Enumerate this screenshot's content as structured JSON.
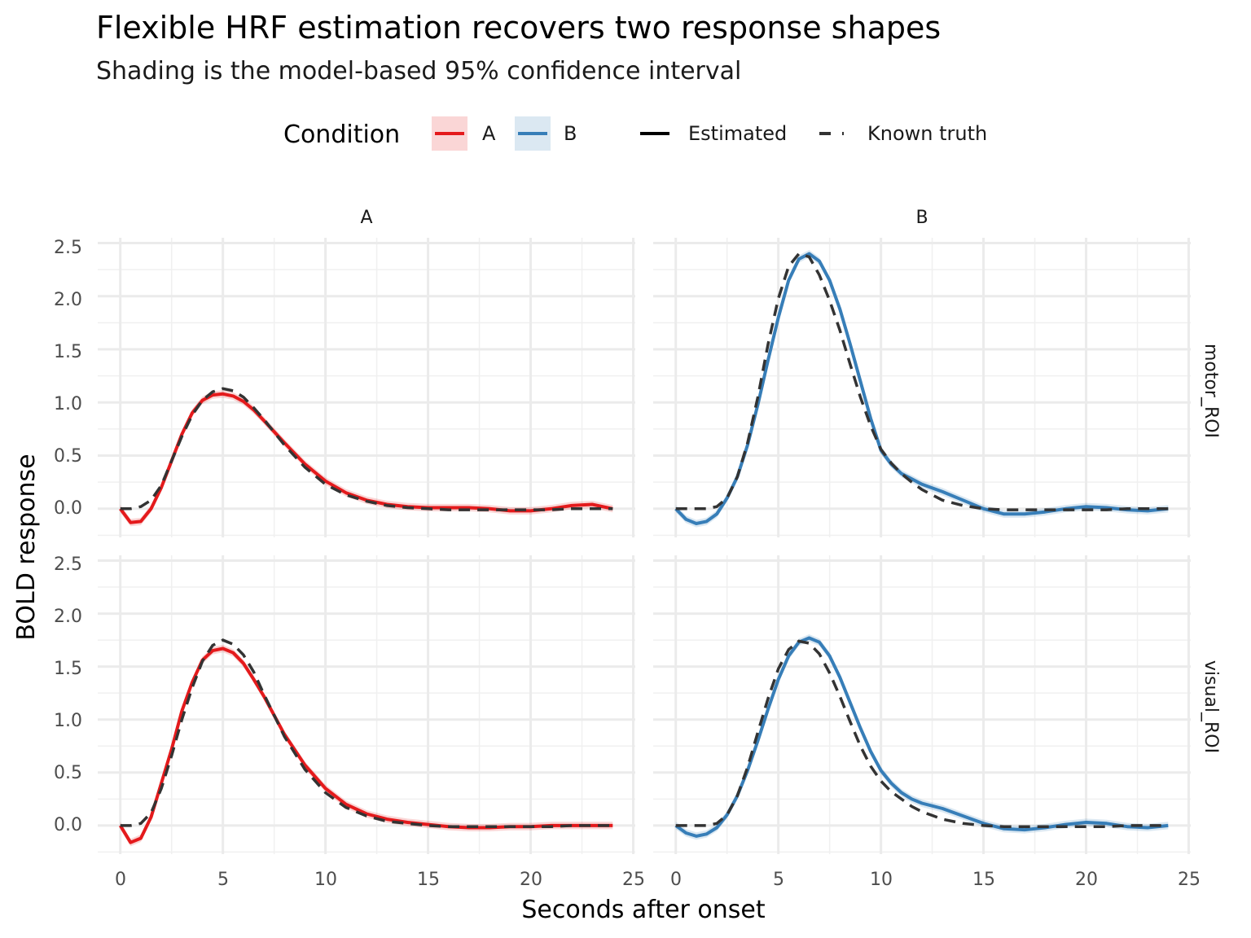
{
  "title": "Flexible HRF estimation recovers two response shapes",
  "subtitle": "Shading is the model-based 95% confidence interval",
  "legend": {
    "condition_title": "Condition",
    "condition_items": [
      {
        "label": "A",
        "color": "#e41a1c"
      },
      {
        "label": "B",
        "color": "#377eb8"
      }
    ],
    "linetype_items": [
      {
        "label": "Estimated"
      },
      {
        "label": "Known truth"
      }
    ]
  },
  "chart_data": {
    "type": "line",
    "xlabel": "Seconds after onset",
    "ylabel": "BOLD response",
    "xlim": [
      -1.1,
      25.1
    ],
    "ylim": [
      -0.27,
      2.55
    ],
    "x_ticks": [
      0,
      5,
      10,
      15,
      20,
      25
    ],
    "x_tick_labels": [
      "0",
      "5",
      "10",
      "15",
      "20",
      "25"
    ],
    "y_ticks": [
      0,
      0.5,
      1,
      1.5,
      2,
      2.5
    ],
    "y_tick_labels": [
      "0.0",
      "0.5",
      "1.0",
      "1.5",
      "2.0",
      "2.5"
    ],
    "grid": true,
    "legend_position": "top",
    "column_facets": [
      "A",
      "B"
    ],
    "row_facets": [
      "motor_ROI",
      "visual_ROI"
    ],
    "panels": [
      {
        "column": "A",
        "row": "motor_ROI",
        "color": "#e41a1c",
        "estimated": {
          "x": [
            0,
            0.5,
            1,
            1.5,
            2,
            2.5,
            3,
            3.5,
            4,
            4.5,
            5,
            5.5,
            6,
            6.5,
            7,
            8,
            9,
            10,
            11,
            12,
            13,
            14,
            15,
            16,
            17,
            18,
            19,
            20,
            21,
            22,
            23,
            24
          ],
          "y": [
            0,
            -0.13,
            -0.12,
            0.0,
            0.2,
            0.45,
            0.7,
            0.9,
            1.02,
            1.07,
            1.08,
            1.06,
            1.01,
            0.93,
            0.83,
            0.62,
            0.42,
            0.26,
            0.15,
            0.08,
            0.04,
            0.02,
            0.01,
            0.01,
            0.01,
            0.0,
            -0.02,
            -0.02,
            0.0,
            0.03,
            0.04,
            0.0
          ]
        },
        "truth": {
          "x": [
            0,
            0.5,
            1,
            1.5,
            2,
            2.5,
            3,
            3.5,
            4,
            4.5,
            5,
            5.5,
            6,
            6.5,
            7,
            8,
            9,
            10,
            11,
            12,
            13,
            14,
            15,
            16,
            17,
            18,
            19,
            20,
            21,
            22,
            23,
            24
          ],
          "y": [
            0,
            0.0,
            0.02,
            0.08,
            0.22,
            0.45,
            0.68,
            0.88,
            1.02,
            1.1,
            1.13,
            1.11,
            1.05,
            0.95,
            0.84,
            0.6,
            0.39,
            0.23,
            0.13,
            0.07,
            0.03,
            0.01,
            0.0,
            -0.01,
            -0.01,
            -0.01,
            -0.01,
            -0.01,
            -0.01,
            0.0,
            0.0,
            0.0
          ]
        }
      },
      {
        "column": "B",
        "row": "motor_ROI",
        "color": "#377eb8",
        "estimated": {
          "x": [
            0,
            0.5,
            1,
            1.5,
            2,
            2.5,
            3,
            3.5,
            4,
            4.5,
            5,
            5.5,
            6,
            6.5,
            7,
            7.5,
            8,
            8.5,
            9,
            9.5,
            10,
            10.5,
            11,
            11.5,
            12,
            13,
            14,
            15,
            16,
            17,
            18,
            19,
            20,
            21,
            22,
            23,
            24
          ],
          "y": [
            0,
            -0.1,
            -0.14,
            -0.12,
            -0.05,
            0.1,
            0.3,
            0.6,
            0.98,
            1.4,
            1.8,
            2.15,
            2.35,
            2.4,
            2.33,
            2.15,
            1.88,
            1.55,
            1.2,
            0.85,
            0.55,
            0.42,
            0.33,
            0.28,
            0.23,
            0.16,
            0.08,
            0.0,
            -0.05,
            -0.05,
            -0.03,
            0.0,
            0.02,
            0.01,
            -0.01,
            -0.02,
            0.0
          ]
        },
        "truth": {
          "x": [
            0,
            0.5,
            1,
            1.5,
            2,
            2.5,
            3,
            3.5,
            4,
            4.5,
            5,
            5.5,
            6,
            6.5,
            7,
            7.5,
            8,
            8.5,
            9,
            9.5,
            10,
            10.5,
            11,
            11.5,
            12,
            13,
            14,
            15,
            16,
            17,
            18,
            19,
            20,
            21,
            22,
            23,
            24
          ],
          "y": [
            0,
            0.0,
            0.0,
            0.0,
            0.02,
            0.1,
            0.3,
            0.62,
            1.05,
            1.55,
            1.98,
            2.28,
            2.4,
            2.37,
            2.2,
            1.96,
            1.68,
            1.36,
            1.05,
            0.78,
            0.56,
            0.43,
            0.33,
            0.25,
            0.18,
            0.08,
            0.03,
            0.0,
            -0.01,
            -0.01,
            -0.01,
            -0.01,
            -0.01,
            -0.01,
            0.0,
            0.0,
            0.0
          ]
        }
      },
      {
        "column": "A",
        "row": "visual_ROI",
        "color": "#e41a1c",
        "estimated": {
          "x": [
            0,
            0.5,
            1,
            1.5,
            2,
            2.5,
            3,
            3.5,
            4,
            4.5,
            5,
            5.5,
            6,
            6.5,
            7,
            8,
            9,
            10,
            11,
            12,
            13,
            14,
            15,
            16,
            17,
            18,
            19,
            20,
            21,
            22,
            23,
            24
          ],
          "y": [
            0,
            -0.16,
            -0.12,
            0.08,
            0.4,
            0.72,
            1.08,
            1.35,
            1.56,
            1.65,
            1.67,
            1.63,
            1.53,
            1.38,
            1.22,
            0.86,
            0.57,
            0.35,
            0.2,
            0.11,
            0.06,
            0.03,
            0.01,
            -0.01,
            -0.02,
            -0.02,
            -0.01,
            -0.01,
            0.0,
            0.0,
            0.0,
            0.0
          ]
        },
        "truth": {
          "x": [
            0,
            0.5,
            1,
            1.5,
            2,
            2.5,
            3,
            3.5,
            4,
            4.5,
            5,
            5.5,
            6,
            6.5,
            7,
            8,
            9,
            10,
            11,
            12,
            13,
            14,
            15,
            16,
            17,
            18,
            19,
            20,
            21,
            22,
            23,
            24
          ],
          "y": [
            0,
            0.0,
            0.02,
            0.12,
            0.35,
            0.66,
            1.0,
            1.3,
            1.55,
            1.7,
            1.75,
            1.71,
            1.61,
            1.45,
            1.24,
            0.84,
            0.53,
            0.31,
            0.17,
            0.09,
            0.04,
            0.02,
            0.0,
            -0.01,
            -0.01,
            -0.01,
            -0.01,
            -0.01,
            -0.01,
            0.0,
            0.0,
            0.0
          ]
        }
      },
      {
        "column": "B",
        "row": "visual_ROI",
        "color": "#377eb8",
        "estimated": {
          "x": [
            0,
            0.5,
            1,
            1.5,
            2,
            2.5,
            3,
            3.5,
            4,
            4.5,
            5,
            5.5,
            6,
            6.5,
            7,
            7.5,
            8,
            8.5,
            9,
            9.5,
            10,
            10.5,
            11,
            11.5,
            12,
            13,
            14,
            15,
            16,
            17,
            18,
            19,
            20,
            21,
            22,
            23,
            24
          ],
          "y": [
            0,
            -0.07,
            -0.1,
            -0.08,
            -0.02,
            0.1,
            0.28,
            0.52,
            0.8,
            1.1,
            1.38,
            1.6,
            1.73,
            1.77,
            1.73,
            1.6,
            1.4,
            1.16,
            0.92,
            0.7,
            0.52,
            0.4,
            0.31,
            0.25,
            0.21,
            0.16,
            0.09,
            0.02,
            -0.03,
            -0.04,
            -0.02,
            0.01,
            0.03,
            0.02,
            -0.01,
            -0.02,
            0.0
          ]
        },
        "truth": {
          "x": [
            0,
            0.5,
            1,
            1.5,
            2,
            2.5,
            3,
            3.5,
            4,
            4.5,
            5,
            5.5,
            6,
            6.5,
            7,
            7.5,
            8,
            8.5,
            9,
            9.5,
            10,
            10.5,
            11,
            11.5,
            12,
            13,
            14,
            15,
            16,
            17,
            18,
            19,
            20,
            21,
            22,
            23,
            24
          ],
          "y": [
            0,
            0.0,
            0.0,
            0.0,
            0.02,
            0.1,
            0.28,
            0.55,
            0.88,
            1.2,
            1.48,
            1.66,
            1.74,
            1.72,
            1.62,
            1.44,
            1.22,
            0.98,
            0.75,
            0.56,
            0.42,
            0.32,
            0.25,
            0.18,
            0.13,
            0.06,
            0.02,
            0.0,
            -0.01,
            -0.01,
            -0.01,
            -0.01,
            -0.01,
            -0.01,
            0.0,
            0.0,
            0.0
          ]
        }
      }
    ]
  }
}
